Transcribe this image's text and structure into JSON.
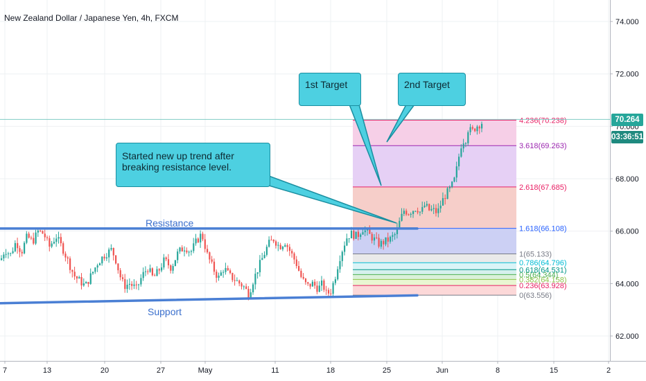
{
  "chart_data": {
    "type": "candlestick",
    "title": "New Zealand Dollar / Japanese Yen, 4h, FXCM",
    "y_axis": {
      "ylim": [
        61.4,
        74.8
      ],
      "ticks": [
        "62.000",
        "64.000",
        "66.000",
        "68.000",
        "70.000",
        "72.000",
        "74.000"
      ]
    },
    "x_axis": {
      "tick_labels": [
        "7",
        "13",
        "20",
        "27",
        "May",
        "11",
        "18",
        "25",
        "Jun",
        "8",
        "15",
        "2"
      ]
    },
    "current_price": "70.264",
    "countdown": "03:36:51",
    "candle_colors": {
      "up": "#26a69a",
      "down": "#ef5350"
    },
    "trendlines": [
      {
        "name": "Resistance",
        "label": "Resistance",
        "from": [
          0,
          66.1
        ],
        "to": [
          602,
          66.1
        ],
        "color": "#4a7fd4"
      },
      {
        "name": "Support",
        "label": "Support",
        "from": [
          0,
          63.25
        ],
        "to": [
          602,
          63.55
        ],
        "color": "#4a7fd4"
      }
    ],
    "fibonacci": [
      {
        "ratio": 0,
        "value": 63.556,
        "label": "0(63.556)",
        "color": "#787b86"
      },
      {
        "ratio": 0.236,
        "value": 63.928,
        "label": "0.236(63.928)",
        "color": "#e91e63"
      },
      {
        "ratio": 0.382,
        "value": 64.158,
        "label": "0.382(64.158)",
        "color": "#8bc34a"
      },
      {
        "ratio": 0.5,
        "value": 64.344,
        "label": "0.5(64.344)",
        "color": "#4caf50"
      },
      {
        "ratio": 0.618,
        "value": 64.531,
        "label": "0.618(64.531)",
        "color": "#009688"
      },
      {
        "ratio": 0.786,
        "value": 64.796,
        "label": "0.786(64.796)",
        "color": "#00bcd4"
      },
      {
        "ratio": 1,
        "value": 65.133,
        "label": "1(65.133)",
        "color": "#787b86"
      },
      {
        "ratio": 1.618,
        "value": 66.108,
        "label": "1.618(66.108)",
        "color": "#2962ff"
      },
      {
        "ratio": 2.618,
        "value": 67.685,
        "label": "2.618(67.685)",
        "color": "#e91e63"
      },
      {
        "ratio": 3.618,
        "value": 69.263,
        "label": "3.618(69.263)",
        "color": "#9c27b0"
      },
      {
        "ratio": 4.236,
        "value": 70.238,
        "label": "4.236(70.238)",
        "color": "#e91e63"
      }
    ],
    "annotations": {
      "target1": "1st Target",
      "target2": "2nd Target",
      "uptrend": "Started new up trend after breaking resistance level."
    },
    "price_path": [
      [
        0,
        64.9
      ],
      [
        6,
        65.3
      ],
      [
        14,
        65.1
      ],
      [
        22,
        65.6
      ],
      [
        30,
        65.2
      ],
      [
        38,
        65.8
      ],
      [
        46,
        65.6
      ],
      [
        54,
        66.0
      ],
      [
        62,
        65.9
      ],
      [
        70,
        65.4
      ],
      [
        80,
        65.8
      ],
      [
        90,
        65.3
      ],
      [
        98,
        64.8
      ],
      [
        106,
        64.3
      ],
      [
        114,
        64.1
      ],
      [
        122,
        63.9
      ],
      [
        130,
        64.3
      ],
      [
        140,
        64.8
      ],
      [
        150,
        65.1
      ],
      [
        160,
        65.3
      ],
      [
        166,
        64.9
      ],
      [
        172,
        64.3
      ],
      [
        178,
        63.9
      ],
      [
        186,
        64.0
      ],
      [
        196,
        63.8
      ],
      [
        204,
        64.3
      ],
      [
        212,
        64.6
      ],
      [
        220,
        64.2
      ],
      [
        228,
        64.5
      ],
      [
        236,
        64.9
      ],
      [
        246,
        64.6
      ],
      [
        256,
        65.2
      ],
      [
        266,
        65.4
      ],
      [
        274,
        65.2
      ],
      [
        282,
        65.6
      ],
      [
        290,
        65.9
      ],
      [
        298,
        65.1
      ],
      [
        306,
        64.6
      ],
      [
        314,
        64.2
      ],
      [
        322,
        64.6
      ],
      [
        330,
        64.3
      ],
      [
        340,
        64.1
      ],
      [
        350,
        63.9
      ],
      [
        358,
        63.6
      ],
      [
        364,
        64.1
      ],
      [
        370,
        64.5
      ],
      [
        378,
        65.0
      ],
      [
        386,
        65.5
      ],
      [
        394,
        65.7
      ],
      [
        402,
        65.4
      ],
      [
        410,
        65.6
      ],
      [
        418,
        65.2
      ],
      [
        426,
        64.8
      ],
      [
        434,
        64.2
      ],
      [
        442,
        63.9
      ],
      [
        450,
        64.0
      ],
      [
        458,
        63.8
      ],
      [
        464,
        64.0
      ],
      [
        470,
        63.6
      ],
      [
        476,
        63.7
      ],
      [
        482,
        64.2
      ],
      [
        488,
        64.9
      ],
      [
        494,
        65.4
      ],
      [
        500,
        65.8
      ],
      [
        506,
        65.9
      ],
      [
        514,
        65.8
      ],
      [
        522,
        66.1
      ],
      [
        530,
        65.9
      ],
      [
        538,
        65.7
      ],
      [
        546,
        65.5
      ],
      [
        554,
        65.6
      ],
      [
        562,
        65.7
      ],
      [
        570,
        65.9
      ],
      [
        576,
        66.4
      ],
      [
        582,
        66.8
      ],
      [
        588,
        66.7
      ],
      [
        594,
        66.8
      ],
      [
        600,
        66.9
      ],
      [
        606,
        66.7
      ],
      [
        612,
        67.0
      ],
      [
        618,
        66.8
      ],
      [
        624,
        66.8
      ],
      [
        630,
        66.7
      ],
      [
        636,
        67.1
      ],
      [
        642,
        67.4
      ],
      [
        648,
        67.6
      ],
      [
        654,
        67.9
      ],
      [
        658,
        68.4
      ],
      [
        662,
        69.0
      ],
      [
        666,
        69.5
      ],
      [
        670,
        69.4
      ],
      [
        674,
        69.9
      ],
      [
        680,
        69.8
      ],
      [
        686,
        70.0
      ],
      [
        692,
        70.1
      ],
      [
        697,
        70.2
      ]
    ]
  }
}
